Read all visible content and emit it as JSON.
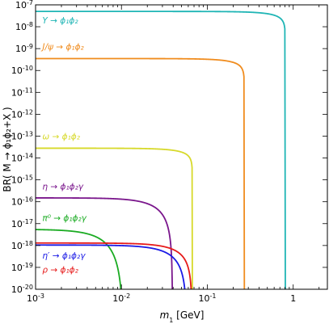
{
  "chart_data": {
    "type": "line",
    "xlabel_sym": "m",
    "xlabel_sub": "1",
    "xlabel_unit": " [GeV]",
    "ylabel": "BR( M → ϕ₁ϕ₂+X )",
    "xscale": "log",
    "yscale": "log",
    "xlim": [
      0.001,
      2.5
    ],
    "ylim": [
      1e-20,
      1e-07
    ],
    "grid": false,
    "x_ticks": [
      {
        "v": 0.001,
        "exp": "-3"
      },
      {
        "v": 0.01,
        "exp": "-2"
      },
      {
        "v": 0.1,
        "exp": "-1"
      },
      {
        "v": 1,
        "label": "1"
      }
    ],
    "y_ticks": [
      {
        "v": 1e-07,
        "exp": "-7"
      },
      {
        "v": 1e-08,
        "exp": "-8"
      },
      {
        "v": 1e-09,
        "exp": "-9"
      },
      {
        "v": 1e-10,
        "exp": "-10"
      },
      {
        "v": 1e-11,
        "exp": "-11"
      },
      {
        "v": 1e-12,
        "exp": "-12"
      },
      {
        "v": 1e-13,
        "exp": "-13"
      },
      {
        "v": 1e-14,
        "exp": "-14"
      },
      {
        "v": 1e-15,
        "exp": "-15"
      },
      {
        "v": 1e-16,
        "exp": "-16"
      },
      {
        "v": 1e-17,
        "exp": "-17"
      },
      {
        "v": 1e-18,
        "exp": "-18"
      },
      {
        "v": 1e-19,
        "exp": "-19"
      },
      {
        "v": 1e-20,
        "exp": "-20"
      }
    ],
    "series": [
      {
        "name": "Υ → ϕ₁ϕ₂",
        "color": "#1fb5b5",
        "br0": 5e-08,
        "cutoff": 0.81,
        "k": 0.5,
        "label_pos": [
          0.0012,
          1.4e-08
        ]
      },
      {
        "name": "J/ψ → ϕ₁ϕ₂",
        "color": "#f08c1e",
        "br0": 3.5e-10,
        "cutoff": 0.27,
        "k": 0.5,
        "label_pos": [
          0.0012,
          9e-10
        ]
      },
      {
        "name": "ω → ϕ₁ϕ₂",
        "color": "#d7d92a",
        "br0": 2.8e-14,
        "cutoff": 0.067,
        "k": 0.5,
        "label_pos": [
          0.0012,
          7e-14
        ]
      },
      {
        "name": "η → ϕ₁ϕ₂γ",
        "color": "#7a168c",
        "br0": 1.5e-16,
        "cutoff": 0.0392,
        "k": 2,
        "label_pos": [
          0.0012,
          3.6e-16
        ]
      },
      {
        "name": "π⁰ → ϕ₁ϕ₂γ",
        "color": "#1aab22",
        "br0": 5.5e-18,
        "cutoff": 0.0105,
        "k": 3,
        "label_pos": [
          0.0012,
          1.3e-17
        ]
      },
      {
        "name": "η′ → ϕ₁ϕ₂γ",
        "color": "#1a1ae6",
        "br0": 1.05e-18,
        "cutoff": 0.0575,
        "k": 2,
        "label_pos": [
          0.0012,
          2.5e-19
        ]
      },
      {
        "name": "ρ → ϕ₁ϕ₂",
        "color": "#e61a1a",
        "br0": 1.3e-18,
        "cutoff": 0.066,
        "k": 1.5,
        "label_pos": [
          0.0012,
          5.6e-20
        ]
      }
    ]
  }
}
